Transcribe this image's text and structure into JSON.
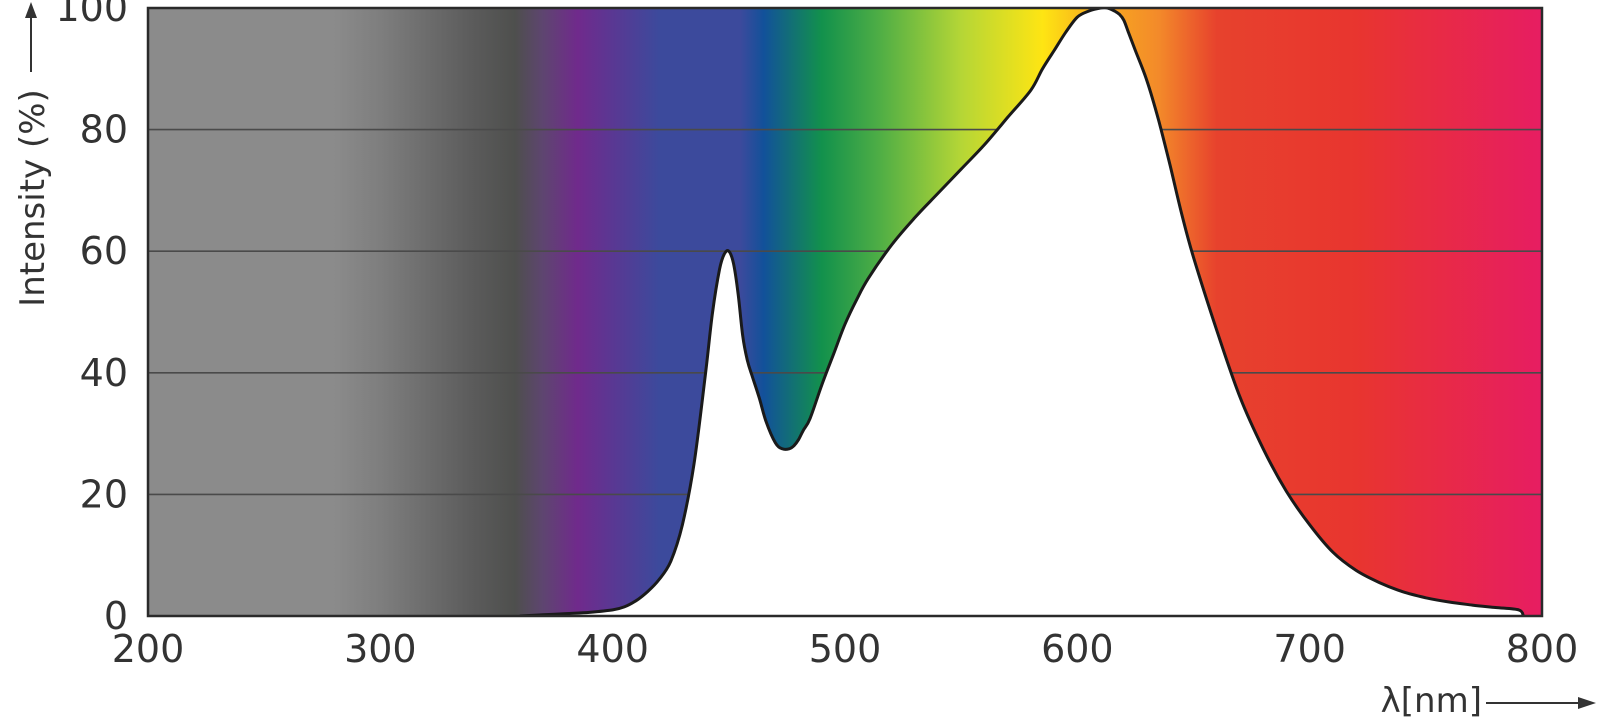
{
  "chart_data": {
    "type": "area",
    "title": "",
    "xlabel": "λ[nm]",
    "ylabel": "Intensity (%)",
    "xlim": [
      200,
      800
    ],
    "ylim": [
      0,
      100
    ],
    "x_ticks": [
      "200",
      "300",
      "400",
      "500",
      "600",
      "700",
      "800"
    ],
    "y_ticks": [
      "0",
      "20",
      "40",
      "60",
      "80",
      "100"
    ],
    "grid": "horizontal",
    "background": "visible spectrum gradient (gray below ~360 nm, violet → blue → green → yellow → orange → red)",
    "series": [
      {
        "x": [
          360,
          370,
          380,
          390,
          400,
          405,
          410,
          415,
          420,
          425,
          430,
          435,
          440,
          443,
          446,
          448,
          450,
          452,
          454,
          456,
          458,
          460,
          463,
          466,
          470,
          473,
          476,
          478,
          480,
          482,
          485,
          490,
          495,
          500,
          505,
          510,
          520,
          530,
          540,
          550,
          560,
          570,
          580,
          585,
          590,
          595,
          600,
          605,
          610,
          613,
          616,
          618,
          620,
          622,
          625,
          630,
          635,
          640,
          645,
          650,
          660,
          670,
          680,
          690,
          700,
          710,
          720,
          730,
          740,
          750,
          760,
          770,
          780,
          790,
          792
        ],
        "y": [
          0,
          0.2,
          0.4,
          0.6,
          1,
          1.5,
          2.5,
          4,
          6,
          9,
          15,
          25,
          40,
          50,
          57,
          59.5,
          60,
          58,
          53,
          46,
          42,
          39.5,
          36,
          32,
          28.5,
          27.5,
          27.5,
          28,
          29,
          30.5,
          32.5,
          38,
          43,
          48,
          52,
          55.5,
          61,
          65.5,
          69.5,
          73.5,
          77.5,
          82,
          86.5,
          90,
          93,
          96,
          98.5,
          99.5,
          100,
          100,
          99.5,
          99,
          98,
          96,
          93,
          88,
          81.5,
          74,
          66,
          59,
          47,
          36,
          27.5,
          20.5,
          15,
          10.5,
          7.5,
          5.5,
          4,
          3,
          2.3,
          1.8,
          1.4,
          1,
          0
        ]
      }
    ]
  },
  "colors": {
    "gray_light": "#8b8b8b",
    "gray_dark": "#4e4f4d",
    "violet": "#702a8c",
    "blue": "#3c4a9c",
    "deep_blue": "#12519a",
    "green": "#12914c",
    "yellow_green": "#b5d636",
    "yellow": "#fee513",
    "orange": "#f38a2a",
    "red": "#e7422d",
    "magenta": "#e71d62",
    "curve": "#1a1a1a",
    "grid": "#4a4a4a"
  }
}
